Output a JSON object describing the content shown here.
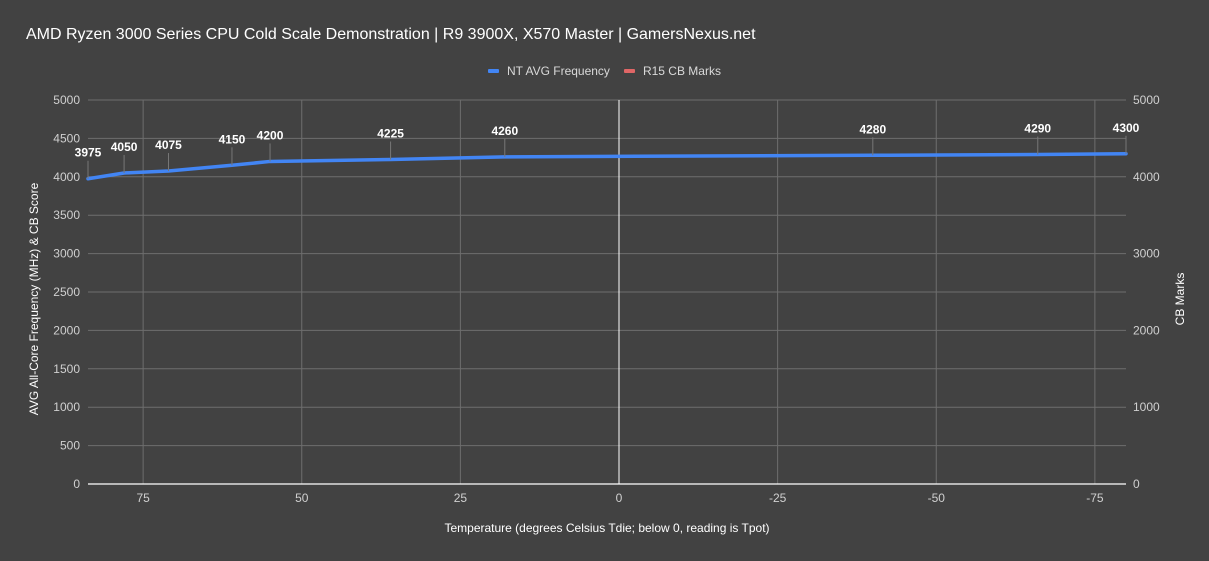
{
  "title": "AMD Ryzen 3000 Series CPU Cold Scale Demonstration | R9 3900X, X570 Master | GamersNexus.net",
  "legend": [
    {
      "label": "NT AVG Frequency",
      "color": "#4285f4"
    },
    {
      "label": "R15 CB Marks",
      "color": "#e06666"
    }
  ],
  "colors": {
    "background": "#424242",
    "grid": "#6e6e6e",
    "axis": "#ffffff",
    "series": "#4285f4"
  },
  "chart_data": {
    "type": "line",
    "title": "AMD Ryzen 3000 Series CPU Cold Scale Demonstration | R9 3900X, X570 Master | GamersNexus.net",
    "xlabel": "Temperature (degrees Celsius Tdie; below 0, reading is Tpot)",
    "ylabel": "AVG All-Core Frequency (MHz) & CB Score",
    "y2label": "CB Marks",
    "x_reversed": true,
    "xlim": [
      84,
      -80
    ],
    "ylim": [
      0,
      5000
    ],
    "y2lim": [
      0,
      5000
    ],
    "x_ticks": [
      "75",
      "50",
      "25",
      "0",
      "-25",
      "-50",
      "-75"
    ],
    "y_ticks": [
      "0",
      "500",
      "1000",
      "1500",
      "2000",
      "2500",
      "3000",
      "3500",
      "4000",
      "4500",
      "5000"
    ],
    "y2_ticks": [
      "0",
      "1000",
      "2000",
      "3000",
      "4000",
      "5000"
    ],
    "grid": true,
    "legend_position": "top",
    "series": [
      {
        "name": "NT AVG Frequency",
        "x": [
          84,
          78,
          71,
          61,
          55,
          36,
          18,
          -40,
          -66,
          -80
        ],
        "values": [
          3975,
          4050,
          4075,
          4150,
          4200,
          4225,
          4260,
          4280,
          4290,
          4300
        ],
        "labels": [
          "3975",
          "4050",
          "4075",
          "4150",
          "4200",
          "4225",
          "4260",
          "4280",
          "4290",
          "4300"
        ]
      },
      {
        "name": "R15 CB Marks",
        "x": [],
        "values": []
      }
    ]
  }
}
